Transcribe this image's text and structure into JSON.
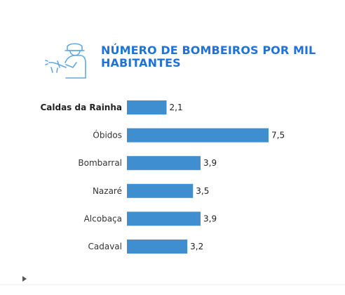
{
  "header": {
    "icon": "firefighter-hose-icon",
    "title": "NÚMERO DE BOMBEIROS POR MIL HABITANTES"
  },
  "colors": {
    "title": "#1f73d8",
    "bar": "#3f8fd0",
    "icon": "#5fa9e6"
  },
  "chart_data": {
    "type": "bar",
    "orientation": "horizontal",
    "categories": [
      "Caldas da Rainha",
      "Óbidos",
      "Bombarral",
      "Nazaré",
      "Alcobaça",
      "Cadaval"
    ],
    "values": [
      2.1,
      7.5,
      3.9,
      3.5,
      3.9,
      3.2
    ],
    "labels": [
      "2,1",
      "7,5",
      "3,9",
      "3,5",
      "3,9",
      "3,2"
    ],
    "highlight": "Caldas da Rainha",
    "xlim": [
      0,
      7.5
    ],
    "grid": false
  },
  "footer": {
    "icon": "play-icon"
  }
}
